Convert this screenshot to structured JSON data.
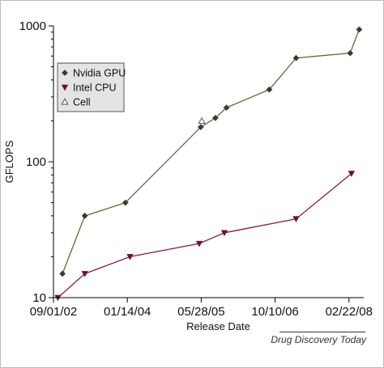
{
  "chart_data": {
    "type": "line",
    "xlabel": "Release Date",
    "ylabel": "GFLOPS",
    "yscale": "log",
    "ylim": [
      10,
      1000
    ],
    "xlim": [
      "2002-09-01",
      "2008-06-01"
    ],
    "xticks": [
      {
        "date": "2002-09-01",
        "label": "09/01/02"
      },
      {
        "date": "2004-01-14",
        "label": "01/14/04"
      },
      {
        "date": "2005-05-28",
        "label": "05/28/05"
      },
      {
        "date": "2006-10-10",
        "label": "10/10/06"
      },
      {
        "date": "2008-02-22",
        "label": "02/22/08"
      }
    ],
    "yticks": [
      {
        "value": 10,
        "label": "10"
      },
      {
        "value": 100,
        "label": "100"
      },
      {
        "value": 1000,
        "label": "1000"
      }
    ],
    "grid": false,
    "legend_position": "top-left",
    "series": [
      {
        "name": "Nvidia GPU",
        "marker": "diamond",
        "color": "#5a6b3a",
        "marker_color": "#3a3a2a",
        "points": [
          {
            "x": "2002-11-01",
            "y": 15
          },
          {
            "x": "2003-04-01",
            "y": 40
          },
          {
            "x": "2004-01-01",
            "y": 50
          },
          {
            "x": "2005-05-25",
            "y": 180
          },
          {
            "x": "2005-09-01",
            "y": 210
          },
          {
            "x": "2005-11-15",
            "y": 250
          },
          {
            "x": "2006-09-01",
            "y": 340
          },
          {
            "x": "2007-03-01",
            "y": 580
          },
          {
            "x": "2008-03-01",
            "y": 630
          },
          {
            "x": "2008-05-01",
            "y": 940
          }
        ]
      },
      {
        "name": "Intel CPU",
        "marker": "triangle-down",
        "color": "#8a1a4a",
        "marker_color": "#6a1038",
        "points": [
          {
            "x": "2002-10-01",
            "y": 10
          },
          {
            "x": "2003-04-01",
            "y": 15
          },
          {
            "x": "2004-02-01",
            "y": 20
          },
          {
            "x": "2005-05-15",
            "y": 25
          },
          {
            "x": "2005-11-01",
            "y": 30
          },
          {
            "x": "2007-03-01",
            "y": 38
          },
          {
            "x": "2008-03-10",
            "y": 82
          }
        ]
      },
      {
        "name": "Cell",
        "marker": "triangle-up-open",
        "color": "#555555",
        "marker_color": "#555555",
        "points": [
          {
            "x": "2005-06-01",
            "y": 200
          }
        ]
      }
    ]
  },
  "source_credit": "Drug Discovery Today"
}
